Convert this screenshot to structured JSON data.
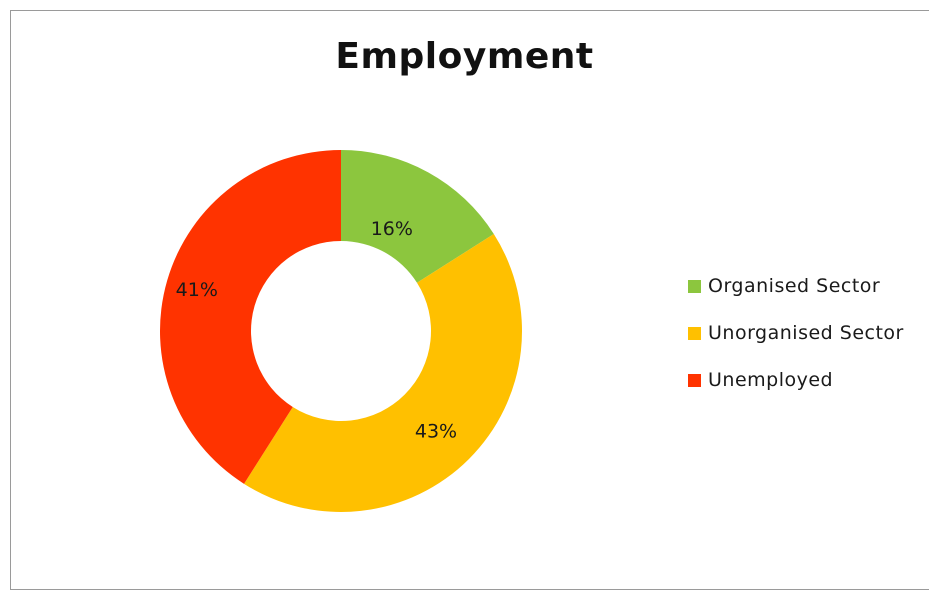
{
  "chart_data": {
    "type": "pie",
    "title": "Employment",
    "categories": [
      "Organised Sector",
      "Unorganised Sector",
      "Unemployed"
    ],
    "values": [
      16,
      43,
      41
    ],
    "data_labels": [
      "16%",
      "43%",
      "41%"
    ],
    "colors": [
      "#8CC63E",
      "#FFC000",
      "#FF3300"
    ],
    "legend_position": "right"
  }
}
